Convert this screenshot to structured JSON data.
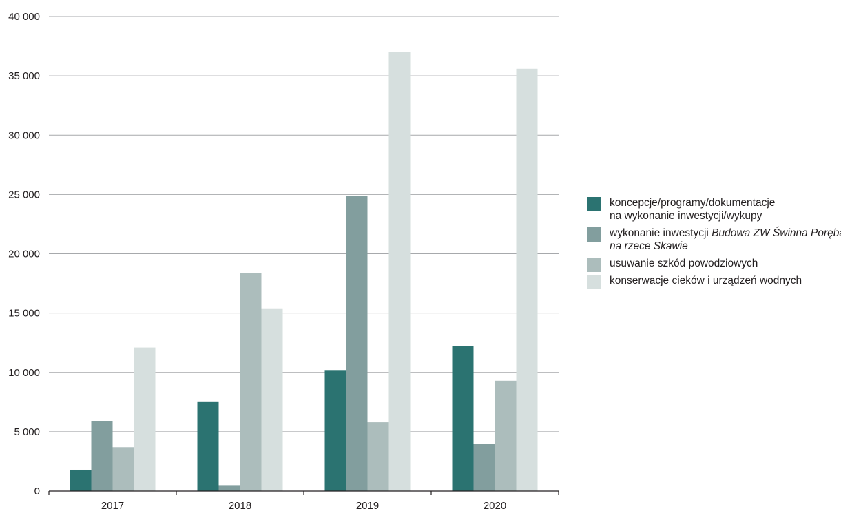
{
  "chart_data": {
    "type": "bar",
    "categories": [
      "2017",
      "2018",
      "2019",
      "2020"
    ],
    "ylim": [
      0,
      40000
    ],
    "yticks": [
      0,
      5000,
      10000,
      15000,
      20000,
      25000,
      30000,
      35000,
      40000
    ],
    "ytick_labels": [
      "0",
      "5 000",
      "10 000",
      "15 000",
      "20 000",
      "25 000",
      "30 000",
      "35 000",
      "40 000"
    ],
    "grid": true,
    "legend_position": "right",
    "series": [
      {
        "name": "koncepcje/programy/dokumentacje na wykonanie inwestycji/wykupy",
        "color": "#2b7371",
        "values": [
          1800,
          7500,
          10200,
          12200
        ]
      },
      {
        "name": "wykonanie inwestycji Budowa ZW Świnna Poręba na rzece Skawie",
        "color": "#829e9e",
        "values": [
          5900,
          500,
          24900,
          4000
        ]
      },
      {
        "name": "usuwanie szkód powodziowych",
        "color": "#acbdbc",
        "values": [
          3700,
          18400,
          5800,
          9300
        ]
      },
      {
        "name": "konserwacje cieków i urządzeń wodnych",
        "color": "#d6dfde",
        "values": [
          12100,
          15400,
          37000,
          35600
        ]
      }
    ]
  },
  "legend": {
    "items": [
      {
        "line1": "koncepcje/programy/dokumentacje",
        "line2": "na wykonanie inwestycji/wykupy"
      },
      {
        "line1_plain": "wykonanie inwestycji ",
        "line1_italic": "Budowa ZW Świnna Poręba",
        "line2_italic": "na rzece Skawie"
      },
      {
        "line1": "usuwanie szkód powodziowych"
      },
      {
        "line1": "konserwacje cieków i urządzeń wodnych"
      }
    ]
  }
}
